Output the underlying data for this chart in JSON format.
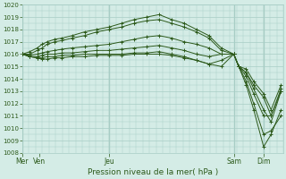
{
  "title": "Pression niveau de la mer( hPa )",
  "background_color": "#d4ece6",
  "grid_color": "#a8cdc5",
  "line_color": "#2d5a1b",
  "ylim": [
    1008,
    1020
  ],
  "yticks": [
    1008,
    1009,
    1010,
    1011,
    1012,
    1013,
    1014,
    1015,
    1016,
    1017,
    1018,
    1019,
    1020
  ],
  "day_tick_pos": [
    0.0,
    0.7,
    3.5,
    8.5,
    9.7
  ],
  "day_tick_labels": [
    "Mer",
    "Ven",
    "Jeu",
    "Sam",
    "Dim"
  ],
  "day_lines": [
    0.0,
    3.5,
    8.5,
    9.7
  ],
  "xlim": [
    0,
    10.5
  ],
  "lines": [
    {
      "x": [
        0.0,
        0.3,
        0.6,
        0.8,
        1.0,
        1.3,
        1.6,
        2.0,
        2.5,
        3.0,
        3.5,
        4.0,
        4.5,
        5.0,
        5.5,
        6.0,
        6.5,
        7.0,
        7.5,
        8.0,
        8.5,
        8.7,
        9.0,
        9.3,
        9.7,
        10.0,
        10.4
      ],
      "y": [
        1016,
        1016.2,
        1016.5,
        1016.8,
        1017.0,
        1017.2,
        1017.3,
        1017.5,
        1017.8,
        1018.0,
        1018.2,
        1018.5,
        1018.8,
        1019.0,
        1019.2,
        1018.8,
        1018.5,
        1018.0,
        1017.5,
        1016.5,
        1016.0,
        1015.0,
        1013.5,
        1011.5,
        1008.5,
        1009.5,
        1011.5
      ]
    },
    {
      "x": [
        0.0,
        0.3,
        0.6,
        0.8,
        1.0,
        1.3,
        1.6,
        2.0,
        2.5,
        3.0,
        3.5,
        4.0,
        4.5,
        5.0,
        5.5,
        6.0,
        6.5,
        7.0,
        7.5,
        8.0,
        8.5,
        8.7,
        9.0,
        9.3,
        9.7,
        10.0,
        10.4
      ],
      "y": [
        1016,
        1016.0,
        1016.3,
        1016.5,
        1016.8,
        1017.0,
        1017.1,
        1017.3,
        1017.5,
        1017.8,
        1018.0,
        1018.2,
        1018.5,
        1018.7,
        1018.8,
        1018.5,
        1018.2,
        1017.8,
        1017.3,
        1016.3,
        1016.0,
        1015.0,
        1013.8,
        1012.0,
        1009.5,
        1009.8,
        1011.0
      ]
    },
    {
      "x": [
        0.0,
        0.3,
        0.6,
        0.8,
        1.0,
        1.3,
        1.6,
        2.0,
        2.5,
        3.0,
        3.5,
        4.0,
        4.5,
        5.0,
        5.5,
        6.0,
        6.5,
        7.0,
        7.5,
        8.0,
        8.5,
        8.7,
        9.0,
        9.3,
        9.7,
        10.0,
        10.4
      ],
      "y": [
        1016,
        1015.9,
        1016.0,
        1016.1,
        1016.2,
        1016.3,
        1016.4,
        1016.5,
        1016.6,
        1016.7,
        1016.8,
        1017.0,
        1017.2,
        1017.4,
        1017.5,
        1017.3,
        1017.0,
        1016.8,
        1016.5,
        1016.0,
        1016.0,
        1015.0,
        1014.2,
        1012.8,
        1011.0,
        1011.0,
        1013.0
      ]
    },
    {
      "x": [
        0.0,
        0.3,
        0.6,
        0.8,
        1.0,
        1.3,
        1.6,
        2.0,
        2.5,
        3.0,
        3.5,
        4.0,
        4.5,
        5.0,
        5.5,
        6.0,
        6.5,
        7.0,
        7.5,
        8.0,
        8.5,
        8.7,
        9.0,
        9.3,
        9.7,
        10.0,
        10.4
      ],
      "y": [
        1016,
        1015.8,
        1015.8,
        1015.9,
        1016.0,
        1016.0,
        1016.1,
        1016.1,
        1016.2,
        1016.3,
        1016.3,
        1016.4,
        1016.5,
        1016.6,
        1016.7,
        1016.5,
        1016.3,
        1016.0,
        1015.8,
        1016.0,
        1016.0,
        1015.0,
        1014.5,
        1013.2,
        1011.5,
        1010.5,
        1013.0
      ]
    },
    {
      "x": [
        0.0,
        0.3,
        0.6,
        0.8,
        1.0,
        1.3,
        1.6,
        2.0,
        2.5,
        3.0,
        3.5,
        4.0,
        4.5,
        5.0,
        5.5,
        6.0,
        6.5,
        7.0,
        7.5,
        8.0,
        8.5,
        8.7,
        9.0,
        9.3,
        9.7,
        10.0,
        10.4
      ],
      "y": [
        1016,
        1015.8,
        1015.7,
        1015.7,
        1015.8,
        1015.8,
        1015.9,
        1015.9,
        1016.0,
        1016.0,
        1016.0,
        1016.0,
        1016.1,
        1016.1,
        1016.2,
        1016.0,
        1015.8,
        1015.5,
        1015.2,
        1015.5,
        1016.0,
        1015.0,
        1014.5,
        1013.5,
        1012.5,
        1011.0,
        1013.2
      ]
    },
    {
      "x": [
        0.0,
        0.3,
        0.6,
        0.8,
        1.0,
        1.3,
        1.6,
        2.0,
        2.5,
        3.0,
        3.5,
        4.0,
        4.5,
        5.0,
        5.5,
        6.0,
        6.5,
        7.0,
        7.5,
        8.0,
        8.5,
        8.7,
        9.0,
        9.3,
        9.7,
        10.0,
        10.4
      ],
      "y": [
        1016,
        1015.8,
        1015.7,
        1015.6,
        1015.6,
        1015.7,
        1015.7,
        1015.8,
        1015.8,
        1015.9,
        1015.9,
        1015.9,
        1016.0,
        1016.0,
        1016.0,
        1015.9,
        1015.7,
        1015.5,
        1015.2,
        1015.0,
        1016.0,
        1015.0,
        1014.8,
        1013.8,
        1012.8,
        1011.5,
        1013.5
      ]
    }
  ]
}
